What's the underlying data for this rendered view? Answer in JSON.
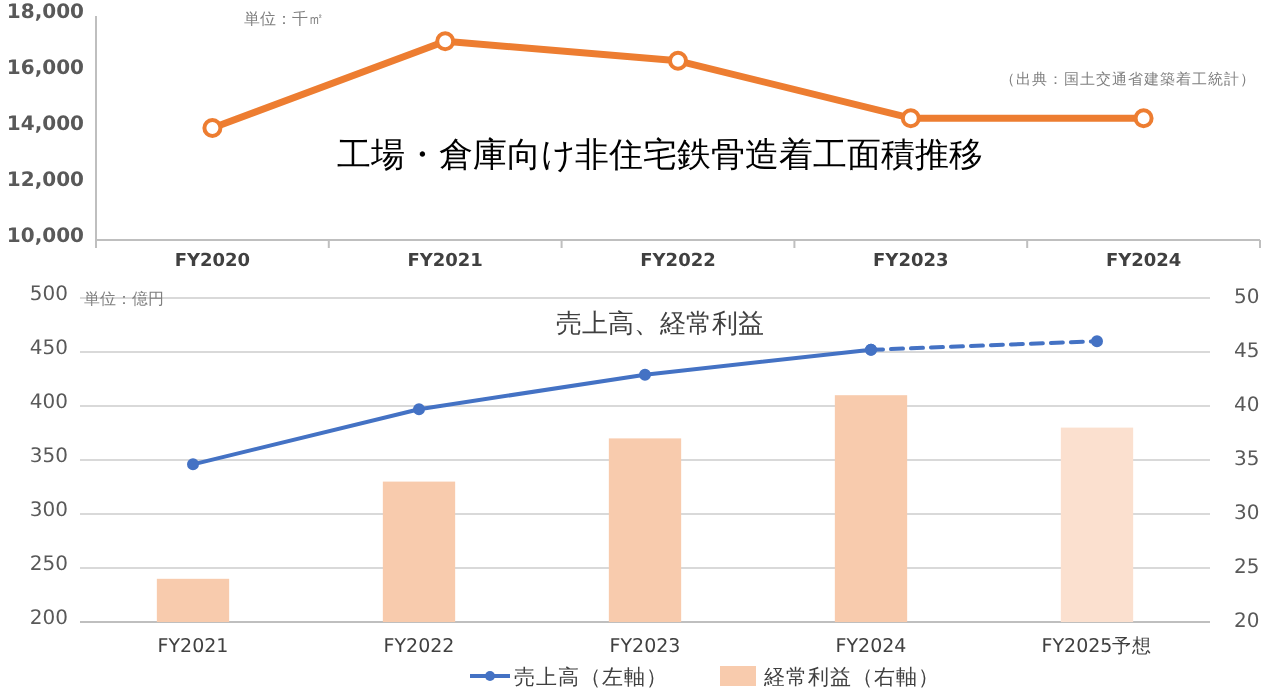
{
  "chart_data": [
    {
      "type": "line",
      "title": "工場・倉庫向け非住宅鉄骨造着工面積推移",
      "annotations": [
        "単位：千㎡",
        "（出典：国土交通省建築着工統計）"
      ],
      "categories": [
        "FY2020",
        "FY2021",
        "FY2022",
        "FY2023",
        "FY2024"
      ],
      "series": [
        {
          "color": "#ed7d31",
          "values": [
            14000,
            17100,
            16400,
            14350,
            14350
          ]
        }
      ],
      "ylim": [
        10000,
        18000
      ],
      "yticks": [
        {
          "value": 10000,
          "label": "10,000"
        },
        {
          "value": 12000,
          "label": "12,000"
        },
        {
          "value": 14000,
          "label": "14,000"
        },
        {
          "value": 16000,
          "label": "16,000"
        },
        {
          "value": 18000,
          "label": "18,000"
        }
      ],
      "marker": "circle"
    },
    {
      "type": "bar",
      "title": "売上高、経常利益",
      "annotations": [
        "単位：億円"
      ],
      "categories": [
        "FY2021",
        "FY2022",
        "FY2023",
        "FY2024",
        "FY2025予想"
      ],
      "series": [
        {
          "name": "売上高（左軸）",
          "type": "line",
          "color": "#4472c4",
          "values": [
            346,
            397,
            429,
            452,
            null
          ]
        },
        {
          "type": "line",
          "color": "#4472c4",
          "line_style": "dashed",
          "values": [
            null,
            null,
            null,
            452,
            460
          ]
        },
        {
          "name": "経常利益（右軸）",
          "axis": "y2",
          "color": "#f8cbad",
          "colors": [
            "#f8cbad",
            "#f8cbad",
            "#f8cbad",
            "#f8cbad",
            "#fbe0cf"
          ],
          "values": [
            24,
            33,
            37,
            41,
            38
          ]
        }
      ],
      "ylim": [
        200,
        500
      ],
      "yticks": [
        200,
        250,
        300,
        350,
        400,
        450,
        500
      ],
      "y2lim": [
        20,
        50
      ],
      "y2ticks": [
        20,
        25,
        30,
        35,
        40,
        45,
        50
      ],
      "grid": "y",
      "legend": "bottom",
      "marker": "circle"
    }
  ]
}
